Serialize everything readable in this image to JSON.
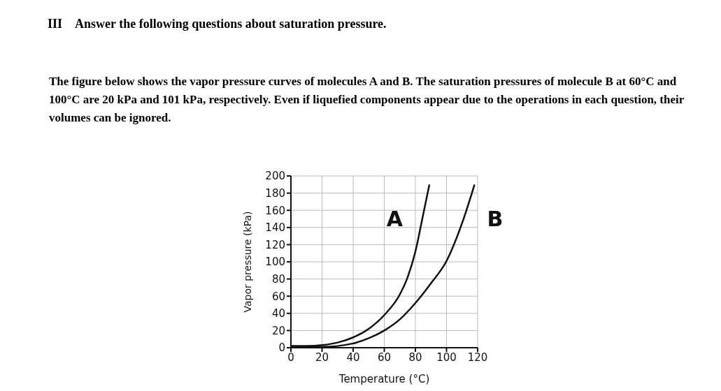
{
  "chart_data": {
    "type": "line",
    "title": "III　Answer the following questions about saturation pressure.",
    "subtitle": "The figure below shows the vapor pressure curves of molecules A and B. The saturation pressures of molecule B at 60°C and 100°C are 20 kPa and 101 kPa, respectively. Even if liquefied components appear due to the operations in each question, their volumes can be ignored.",
    "xlabel": "Temperature (°C)",
    "ylabel": "Vapor pressure (kPa)",
    "series": [
      {
        "name": "A",
        "color": "#111111",
        "x": [
          0,
          10,
          20,
          30,
          40,
          50,
          60,
          70,
          75,
          80,
          85,
          89
        ],
        "values": [
          2,
          2,
          3,
          6,
          12,
          22,
          38,
          62,
          82,
          112,
          155,
          190
        ]
      },
      {
        "name": "B",
        "color": "#111111",
        "x": [
          0,
          20,
          40,
          50,
          60,
          70,
          80,
          90,
          100,
          110,
          118
        ],
        "values": [
          1,
          1,
          5,
          11,
          20,
          33,
          52,
          75,
          101,
          145,
          190
        ]
      }
    ],
    "xlim": [
      0,
      120
    ],
    "xticks": [
      0,
      20,
      40,
      60,
      80,
      100,
      120
    ],
    "ylim": [
      0,
      200
    ],
    "yticks": [
      0,
      20,
      40,
      60,
      80,
      100,
      120,
      140,
      160,
      180,
      200
    ],
    "grid": true,
    "legend": false,
    "marker": "none",
    "line_style": "solid"
  }
}
